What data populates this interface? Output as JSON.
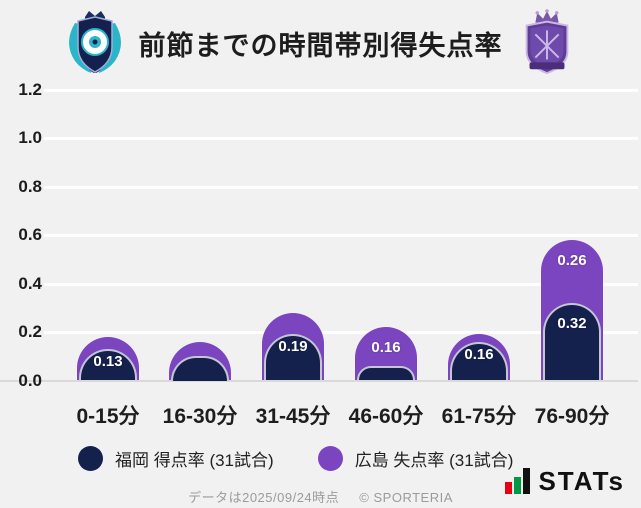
{
  "title": "前節までの時間帯別得失点率",
  "colors": {
    "background": "#f1f1f2",
    "fukuoka_navy": "#15214d",
    "hiroshima_purple": "#7b45bf",
    "gridline": "#ffffff",
    "baseline": "#d9d9d9",
    "value_label": "#ffffff"
  },
  "chart_data": {
    "type": "bar",
    "stacked": true,
    "title": "前節までの時間帯別得失点率",
    "categories": [
      "0-15分",
      "16-30分",
      "31-45分",
      "46-60分",
      "61-75分",
      "76-90分"
    ],
    "series": [
      {
        "name": "福岡 得点率 (31試合)",
        "color": "#15214d",
        "values": [
          0.13,
          0.1,
          0.19,
          0.06,
          0.16,
          0.32
        ],
        "labels": [
          "0.13",
          "",
          "0.19",
          "",
          "0.16",
          "0.32"
        ]
      },
      {
        "name": "広島 失点率 (31試合)",
        "color": "#7b45bf",
        "values": [
          0.05,
          0.06,
          0.09,
          0.16,
          0.03,
          0.26
        ],
        "labels": [
          "",
          "",
          "",
          "0.16",
          "",
          "0.26"
        ]
      }
    ],
    "ylim": [
      0,
      1.2
    ],
    "yticks": [
      {
        "label": "1.2",
        "value": 1.2
      },
      {
        "label": "1.0",
        "value": 1.0
      },
      {
        "label": "0.8",
        "value": 0.8
      },
      {
        "label": "0.6",
        "value": 0.6
      },
      {
        "label": "0.4",
        "value": 0.4
      },
      {
        "label": "0.2",
        "value": 0.2
      },
      {
        "label": "0.0",
        "value": 0.0
      }
    ],
    "grid": true,
    "legend_position": "bottom"
  },
  "legend": {
    "items": [
      {
        "label": "福岡 得点率 (31試合)",
        "color": "#15214d"
      },
      {
        "label": "広島 失点率 (31試合)",
        "color": "#7b45bf"
      }
    ]
  },
  "footer": {
    "note": "データは2025/09/24時点",
    "copyright": "© SPORTERIA",
    "brand": "STATs"
  },
  "logos": {
    "left": "avispa-fukuoka-crest",
    "right": "sanfrecce-hiroshima-crest"
  }
}
